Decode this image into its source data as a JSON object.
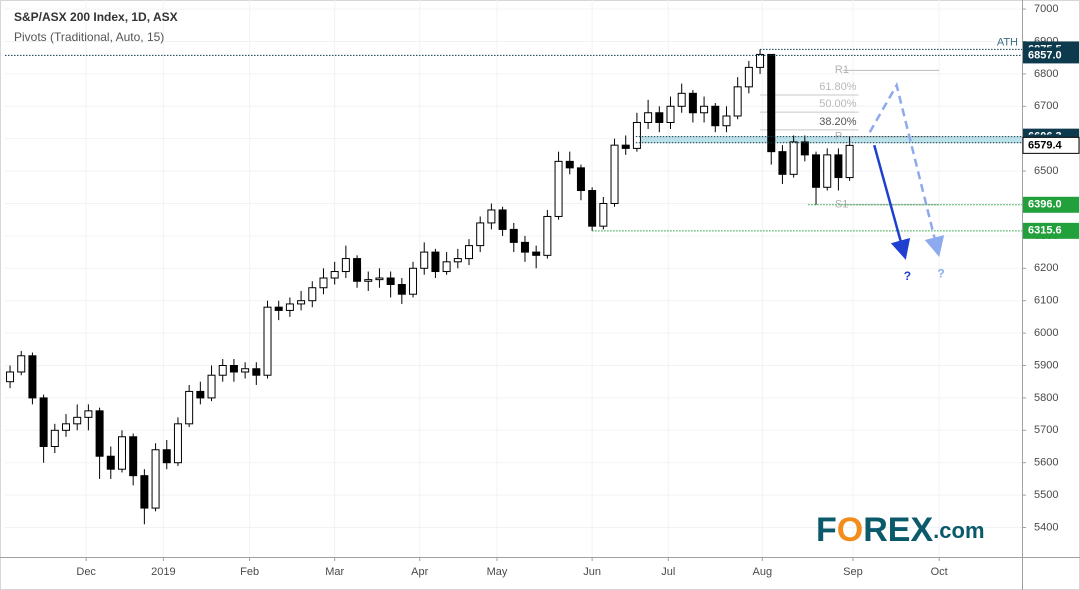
{
  "chart_data": {
    "type": "candlestick",
    "title": "S&P/ASX 200 Index, 1D, ASX",
    "subtitle": "Pivots (Traditional, Auto, 15)",
    "x": [
      0,
      1,
      2,
      3,
      4,
      5,
      6,
      7,
      8,
      9,
      10,
      11,
      12,
      13,
      14,
      15,
      16,
      17,
      18,
      19,
      20,
      21,
      22,
      23,
      24,
      25,
      26,
      27,
      28,
      29,
      30,
      31,
      32,
      33,
      34,
      35,
      36,
      37,
      38,
      39,
      40,
      41,
      42,
      43,
      44,
      45,
      46,
      47,
      48,
      49,
      50,
      51,
      52,
      53,
      54,
      55,
      56,
      57,
      58,
      59,
      60,
      61,
      62,
      63,
      64,
      65,
      66,
      67,
      68,
      69,
      70,
      71,
      72,
      73,
      74,
      75
    ],
    "open": [
      5850,
      5880,
      5930,
      5800,
      5650,
      5700,
      5720,
      5740,
      5760,
      5620,
      5580,
      5680,
      5560,
      5460,
      5640,
      5600,
      5720,
      5820,
      5800,
      5870,
      5900,
      5880,
      5890,
      5870,
      6080,
      6070,
      6090,
      6100,
      6140,
      6170,
      6190,
      6230,
      6160,
      6165,
      6170,
      6150,
      6120,
      6200,
      6250,
      6190,
      6220,
      6230,
      6270,
      6340,
      6380,
      6320,
      6280,
      6250,
      6240,
      6360,
      6530,
      6510,
      6440,
      6330,
      6400,
      6580,
      6570,
      6650,
      6680,
      6650,
      6700,
      6740,
      6680,
      6700,
      6640,
      6670,
      6760,
      6820,
      6860,
      6560,
      6490,
      6590,
      6550,
      6450,
      6550,
      6480
    ],
    "high": [
      5900,
      5945,
      5940,
      5810,
      5720,
      5750,
      5780,
      5780,
      5770,
      5650,
      5700,
      5690,
      5580,
      5660,
      5670,
      5740,
      5840,
      5850,
      5900,
      5920,
      5920,
      5910,
      5910,
      6100,
      6100,
      6110,
      6130,
      6160,
      6200,
      6220,
      6270,
      6240,
      6190,
      6200,
      6190,
      6170,
      6220,
      6280,
      6260,
      6250,
      6260,
      6290,
      6360,
      6400,
      6390,
      6340,
      6300,
      6270,
      6380,
      6560,
      6560,
      6520,
      6450,
      6420,
      6600,
      6610,
      6680,
      6720,
      6700,
      6730,
      6770,
      6750,
      6730,
      6710,
      6700,
      6790,
      6840,
      6875.5,
      6860,
      6580,
      6610,
      6610,
      6560,
      6570,
      6570,
      6606.3
    ],
    "low": [
      5830,
      5870,
      5780,
      5600,
      5630,
      5680,
      5700,
      5700,
      5550,
      5550,
      5570,
      5530,
      5410,
      5450,
      5580,
      5590,
      5710,
      5780,
      5790,
      5850,
      5850,
      5860,
      5840,
      5860,
      6040,
      6050,
      6070,
      6080,
      6120,
      6150,
      6170,
      6140,
      6130,
      6140,
      6110,
      6090,
      6110,
      6180,
      6170,
      6180,
      6200,
      6210,
      6250,
      6320,
      6300,
      6250,
      6220,
      6200,
      6230,
      6350,
      6490,
      6410,
      6315.6,
      6320,
      6390,
      6550,
      6560,
      6630,
      6620,
      6630,
      6680,
      6650,
      6650,
      6620,
      6620,
      6660,
      6740,
      6800,
      6520,
      6460,
      6480,
      6530,
      6396,
      6440,
      6440,
      6470
    ],
    "close": [
      5880,
      5930,
      5800,
      5650,
      5700,
      5720,
      5740,
      5760,
      5620,
      5580,
      5680,
      5560,
      5460,
      5640,
      5600,
      5720,
      5820,
      5800,
      5870,
      5900,
      5880,
      5890,
      5870,
      6080,
      6070,
      6090,
      6100,
      6140,
      6170,
      6190,
      6230,
      6160,
      6165,
      6170,
      6150,
      6120,
      6200,
      6250,
      6190,
      6220,
      6230,
      6270,
      6340,
      6380,
      6320,
      6280,
      6250,
      6240,
      6360,
      6530,
      6510,
      6440,
      6330,
      6400,
      6580,
      6570,
      6650,
      6680,
      6650,
      6700,
      6740,
      6680,
      6700,
      6640,
      6670,
      6760,
      6820,
      6860,
      6560,
      6490,
      6590,
      6550,
      6450,
      6550,
      6480,
      6579.4
    ],
    "up_color": "#ffffff",
    "down_color": "#000000",
    "xlim": [
      -0.45,
      90.4
    ],
    "xticks": [
      {
        "value": 6.8,
        "label": "Dec"
      },
      {
        "value": 13.7,
        "label": "2019"
      },
      {
        "value": 21.4,
        "label": "Feb"
      },
      {
        "value": 29.0,
        "label": "Mar"
      },
      {
        "value": 36.6,
        "label": "Apr"
      },
      {
        "value": 43.5,
        "label": "May"
      },
      {
        "value": 52.0,
        "label": "Jun"
      },
      {
        "value": 58.8,
        "label": "Jul"
      },
      {
        "value": 67.2,
        "label": "Aug"
      },
      {
        "value": 75.3,
        "label": "Sep"
      },
      {
        "value": 83.0,
        "label": "Oct"
      }
    ],
    "ylim": [
      5309,
      7028
    ],
    "yticks": [
      5400,
      5500,
      5600,
      5700,
      5800,
      5900,
      6000,
      6100,
      6200,
      6300,
      6400,
      6500,
      6600,
      6700,
      6800,
      6900,
      7000
    ],
    "levels": [
      {
        "value": 6875.5,
        "color": "#0d3a4d",
        "from": 67,
        "note": "ATH"
      },
      {
        "value": 6857,
        "label": "6857.0",
        "color": "#0d3a4d",
        "from": -0.45
      },
      {
        "value": 6606.3,
        "color": "#0d3a4d",
        "from": 55.9
      },
      {
        "value": 6587.3,
        "color": "#0d3a4d",
        "from": 55.9
      },
      {
        "value": 6396,
        "label": "6396.0",
        "color": "#22a03c",
        "from": 71.3
      },
      {
        "value": 6315.6,
        "color": "#22a03c",
        "from": 52
      }
    ],
    "zone_color": "#aad9e3",
    "pivots": [
      {
        "label": "R1",
        "value": 6811
      },
      {
        "label": "P",
        "value": 6606
      },
      {
        "label": "S1",
        "value": 6396
      }
    ],
    "pivot_from": 74.4,
    "pivot_to": 83,
    "fibs": [
      {
        "label": "61.80%",
        "value": 6735
      },
      {
        "label": "50.00%",
        "value": 6682
      },
      {
        "label": "38.20%",
        "value": 6627
      }
    ],
    "fib_from": 67,
    "fib_to": 75.8,
    "projections": [
      {
        "color": "#1f3fd1",
        "dashed": false,
        "x": [
          77.2,
          79.9
        ],
        "y": [
          6580,
          6241
        ],
        "label": "?"
      },
      {
        "color": "#8eaaee",
        "dashed": true,
        "x": [
          76.8,
          79.2,
          82.9
        ],
        "y": [
          6620,
          6765,
          6250
        ],
        "label": "?"
      }
    ],
    "logo": [
      "F",
      "O",
      "REX",
      ".com"
    ]
  }
}
